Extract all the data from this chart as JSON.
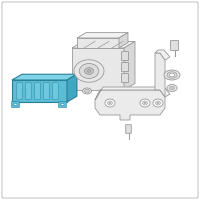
{
  "background_color": "#ffffff",
  "border_color": "#c8c8c8",
  "icm_fill_front": "#5bbdd6",
  "icm_fill_top": "#7fd4e8",
  "icm_fill_side": "#3fa8c0",
  "icm_stroke": "#2a8098",
  "part_stroke": "#999999",
  "part_fill_front": "#e8e8e8",
  "part_fill_top": "#f2f2f2",
  "part_fill_side": "#d8d8d8",
  "bracket_fill": "#ebebeb",
  "bracket_stroke": "#999999"
}
